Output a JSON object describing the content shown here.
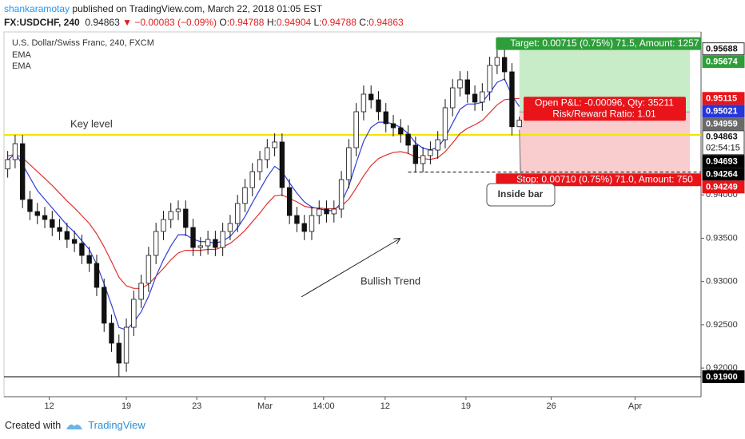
{
  "header": {
    "author": "shankaramotay",
    "published": "published on TradingView.com, March 22, 2018 01:05 EST",
    "symbol": "FX:USDCHF, 240",
    "last": "0.94863",
    "change": "▼ −0.00083 (−0.09%)",
    "ohlc": [
      {
        "key": "O:",
        "value": "0.94788"
      },
      {
        "key": "H:",
        "value": "0.94904"
      },
      {
        "key": "L:",
        "value": "0.94788"
      },
      {
        "key": "C:",
        "value": "0.94863"
      }
    ]
  },
  "footer": {
    "created": "Created with",
    "brand": "TradingView"
  },
  "chart_data": {
    "type": "candlestick",
    "title": "U.S. Dollar/Swiss Franc, 240, FXCM",
    "open": [
      0.943,
      0.94408,
      0.94592,
      0.93947,
      0.93808,
      0.93762,
      0.93716,
      0.93624,
      0.93578,
      0.93486,
      0.9344,
      0.93301,
      0.93209,
      0.92932,
      0.92518,
      0.92287,
      0.92057,
      0.92471,
      0.92794,
      0.92979,
      0.93301,
      0.93578,
      0.93716,
      0.93808,
      0.93836,
      0.93624,
      0.93393,
      0.93412,
      0.93486,
      0.93393,
      0.93578,
      0.9367,
      0.93901,
      0.94085,
      0.94269,
      0.94408,
      0.94546,
      0.94611,
      0.94085,
      0.93762,
      0.9367,
      0.93578,
      0.93762,
      0.93836,
      0.93781,
      0.93836,
      0.94177,
      0.94546,
      0.94961,
      0.95164,
      0.95099,
      0.94961,
      0.94823,
      0.94776,
      0.94703,
      0.94574,
      0.94362,
      0.94454,
      0.94518,
      0.94638,
      0.95007,
      0.95237,
      0.9533,
      0.95164,
      0.95072,
      0.95191,
      0.95496,
      0.95588,
      0.95422,
      0.94788
    ],
    "high": [
      0.94508,
      0.94692,
      0.94692,
      0.94047,
      0.93908,
      0.93862,
      0.93816,
      0.93724,
      0.93678,
      0.93586,
      0.9354,
      0.93401,
      0.93309,
      0.93032,
      0.92618,
      0.92387,
      0.92571,
      0.92894,
      0.93079,
      0.93401,
      0.93678,
      0.93816,
      0.93908,
      0.93936,
      0.93936,
      0.93724,
      0.93512,
      0.93586,
      0.93586,
      0.93678,
      0.9377,
      0.94001,
      0.94185,
      0.94369,
      0.94508,
      0.94646,
      0.94711,
      0.94711,
      0.94185,
      0.93862,
      0.9377,
      0.93862,
      0.93936,
      0.93936,
      0.93936,
      0.94277,
      0.94646,
      0.95061,
      0.95264,
      0.95264,
      0.95199,
      0.95061,
      0.94923,
      0.94876,
      0.94803,
      0.94674,
      0.94554,
      0.94618,
      0.94738,
      0.95107,
      0.95337,
      0.9543,
      0.9543,
      0.95264,
      0.95291,
      0.95596,
      0.95688,
      0.95688,
      0.95522,
      0.94904
    ],
    "low": [
      0.942,
      0.94308,
      0.93847,
      0.93708,
      0.93662,
      0.93616,
      0.93524,
      0.93478,
      0.93386,
      0.9334,
      0.93201,
      0.93109,
      0.92832,
      0.92418,
      0.92187,
      0.919,
      0.91957,
      0.92371,
      0.92694,
      0.92879,
      0.93201,
      0.93478,
      0.93616,
      0.93708,
      0.93524,
      0.93293,
      0.93293,
      0.93312,
      0.93293,
      0.93293,
      0.93478,
      0.9357,
      0.93801,
      0.93985,
      0.94169,
      0.94308,
      0.94446,
      0.93985,
      0.93662,
      0.9357,
      0.93478,
      0.93478,
      0.93662,
      0.93681,
      0.93681,
      0.93736,
      0.94077,
      0.94446,
      0.94861,
      0.94999,
      0.94861,
      0.94723,
      0.94676,
      0.94603,
      0.94474,
      0.94262,
      0.94262,
      0.94354,
      0.94418,
      0.94538,
      0.94907,
      0.95137,
      0.95064,
      0.94972,
      0.94972,
      0.95091,
      0.95396,
      0.95322,
      0.94688,
      0.94788
    ],
    "close": [
      0.94408,
      0.94592,
      0.93947,
      0.93808,
      0.93762,
      0.93716,
      0.93624,
      0.93578,
      0.93486,
      0.9344,
      0.93301,
      0.93209,
      0.92932,
      0.92518,
      0.92287,
      0.92057,
      0.92471,
      0.92794,
      0.92979,
      0.93301,
      0.93578,
      0.93716,
      0.93808,
      0.93836,
      0.93624,
      0.93393,
      0.93412,
      0.93486,
      0.93393,
      0.93578,
      0.9367,
      0.93901,
      0.94085,
      0.94269,
      0.94408,
      0.94546,
      0.94611,
      0.94085,
      0.93762,
      0.9367,
      0.93578,
      0.93762,
      0.93836,
      0.93781,
      0.93836,
      0.94177,
      0.94546,
      0.94961,
      0.95164,
      0.95099,
      0.94961,
      0.94823,
      0.94776,
      0.94703,
      0.94574,
      0.94362,
      0.94454,
      0.94518,
      0.94638,
      0.95007,
      0.95237,
      0.9533,
      0.95164,
      0.95072,
      0.95191,
      0.95496,
      0.95588,
      0.95422,
      0.94788,
      0.94863
    ],
    "indicators": [
      {
        "name": "EMA",
        "color": "#2f3fd6",
        "values": [
          0.944,
          0.9448,
          0.9435,
          0.942,
          0.9405,
          0.9395,
          0.9385,
          0.9375,
          0.9365,
          0.9357,
          0.9347,
          0.9337,
          0.932,
          0.9297,
          0.9273,
          0.9247,
          0.9244,
          0.9253,
          0.9265,
          0.9283,
          0.9306,
          0.9325,
          0.9341,
          0.9354,
          0.9354,
          0.9349,
          0.9346,
          0.9346,
          0.9344,
          0.9347,
          0.9352,
          0.9362,
          0.9375,
          0.9391,
          0.9406,
          0.9421,
          0.9433,
          0.9427,
          0.9414,
          0.9402,
          0.9392,
          0.9386,
          0.9384,
          0.9382,
          0.9382,
          0.9391,
          0.941,
          0.9437,
          0.9462,
          0.9478,
          0.9484,
          0.9484,
          0.9482,
          0.9478,
          0.9471,
          0.946,
          0.9454,
          0.9452,
          0.9455,
          0.9466,
          0.9483,
          0.9499,
          0.9505,
          0.9505,
          0.9507,
          0.9518,
          0.953,
          0.9534,
          0.9515,
          0.95021
        ]
      },
      {
        "name": "EMA",
        "color": "#e03030",
        "values": [
          0.9445,
          0.9447,
          0.9443,
          0.9435,
          0.9427,
          0.9419,
          0.9411,
          0.9402,
          0.9393,
          0.9385,
          0.9376,
          0.9367,
          0.9355,
          0.934,
          0.9323,
          0.9305,
          0.9295,
          0.9292,
          0.9292,
          0.9297,
          0.9306,
          0.9315,
          0.9325,
          0.9333,
          0.9336,
          0.9336,
          0.9336,
          0.9337,
          0.9337,
          0.934,
          0.9344,
          0.9351,
          0.9359,
          0.9369,
          0.9379,
          0.939,
          0.9399,
          0.94,
          0.9396,
          0.9392,
          0.9387,
          0.9385,
          0.9385,
          0.9384,
          0.9384,
          0.9387,
          0.9395,
          0.9408,
          0.9422,
          0.9434,
          0.9442,
          0.9446,
          0.9449,
          0.945,
          0.9448,
          0.9444,
          0.9442,
          0.9441,
          0.9443,
          0.945,
          0.946,
          0.9471,
          0.9477,
          0.9481,
          0.9486,
          0.9495,
          0.9504,
          0.951,
          0.9511,
          0.95115
        ]
      }
    ],
    "xlim": [
      -0.5,
      93.5
    ],
    "ylim": [
      0.91669,
      0.95883
    ],
    "xticks": [
      {
        "value": 5.6,
        "label": "12"
      },
      {
        "value": 16,
        "label": "19"
      },
      {
        "value": 25.5,
        "label": "23"
      },
      {
        "value": 34.7,
        "label": "Mar"
      },
      {
        "value": 42.6,
        "label": "14:00"
      },
      {
        "value": 50.9,
        "label": "12"
      },
      {
        "value": 61.8,
        "label": "19"
      },
      {
        "value": 73.3,
        "label": "26"
      },
      {
        "value": 84.6,
        "label": "Apr"
      }
    ],
    "yticks": [
      {
        "value": 0.92,
        "label": "0.92000"
      },
      {
        "value": 0.925,
        "label": "0.92500"
      },
      {
        "value": 0.93,
        "label": "0.93000"
      },
      {
        "value": 0.935,
        "label": "0.93500"
      },
      {
        "value": 0.94,
        "label": "0.94000"
      }
    ],
    "grid": false,
    "hlines": [
      {
        "value": 0.94693,
        "label": "0.94693",
        "color": "#f2e600",
        "style": "solid",
        "text": "Key level"
      },
      {
        "value": 0.94264,
        "label": "0.94264",
        "color": "#000000",
        "style": "dashed"
      },
      {
        "value": 0.919,
        "label": "0.91900",
        "color": "#000000",
        "style": "solid"
      }
    ],
    "price_labels": [
      {
        "value": 0.95688,
        "label": "0.95688",
        "color": "#ffffff"
      },
      {
        "value": 0.95674,
        "label": "0.95674",
        "color": "#2e9e3a"
      },
      {
        "value": 0.95115,
        "label": "0.95115",
        "color": "#e8141a"
      },
      {
        "value": 0.95021,
        "label": "0.95021",
        "color": "#2636d9"
      },
      {
        "value": 0.94959,
        "label": "0.94959",
        "color": "#6a6a6a"
      },
      {
        "value": 0.94863,
        "label": "0.94863",
        "color": "#ffffff",
        "countdown": "02:54:15"
      },
      {
        "value": 0.94249,
        "label": "0.94249",
        "color": "#e8141a"
      }
    ],
    "position": {
      "start": 69,
      "end": 92,
      "entry": 0.94959,
      "target": 0.95674,
      "stop": 0.94249,
      "target_text": "Target: 0.00715 (0.75%) 71.5, Amount: 1257",
      "stop_text": "Stop: 0.00710 (0.75%) 71.0, Amount: 750",
      "pnl_text": "Open P&L: -0.00096, Qty: 35211",
      "rr_text": "Risk/Reward Ratio: 1.01"
    },
    "annotations": {
      "trend": "Bullish Trend",
      "inside_bar": "Inside bar"
    }
  }
}
